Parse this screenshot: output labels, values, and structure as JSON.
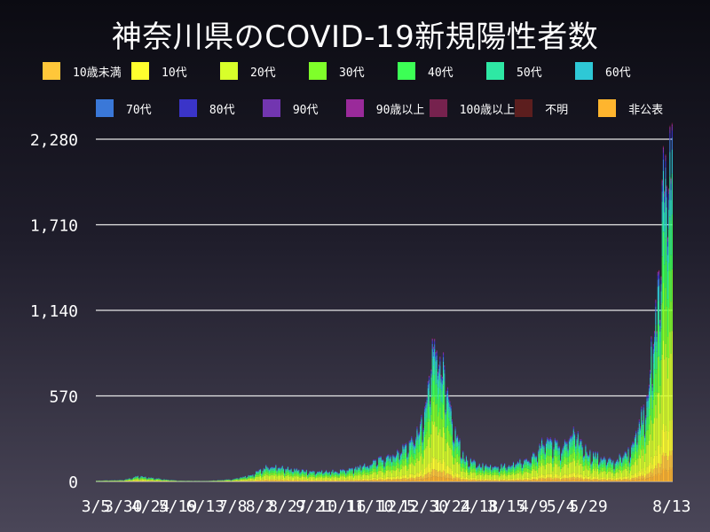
{
  "chart_data": {
    "type": "bar",
    "stacked": true,
    "title": "神奈川県のCOVID-19新規陽性者数",
    "xlabel": "",
    "ylabel": "",
    "ylim": [
      0,
      2280
    ],
    "yticks": [
      0,
      570,
      1140,
      1710,
      2280
    ],
    "ytick_labels": [
      "0",
      "570",
      "1,140",
      "1,710",
      "2,280"
    ],
    "xtick_labels": [
      "3/5",
      "3/30",
      "4/24",
      "5/19",
      "6/13",
      "7/8",
      "8/2",
      "8/27",
      "9/21",
      "10/16",
      "11/10",
      "12/5",
      "12/30",
      "1/24",
      "2/18",
      "3/15",
      "4/9",
      "5/4",
      "5/29",
      "8/13"
    ],
    "grid": true,
    "legend_position": "top",
    "series": [
      {
        "name": "10歳未満",
        "color": "#ffc73a"
      },
      {
        "name": "10代",
        "color": "#ffff2e"
      },
      {
        "name": "20代",
        "color": "#d8ff2a"
      },
      {
        "name": "30代",
        "color": "#7fff2a"
      },
      {
        "name": "40代",
        "color": "#3cff55"
      },
      {
        "name": "50代",
        "color": "#2ee8a4"
      },
      {
        "name": "60代",
        "color": "#2ec8d6"
      },
      {
        "name": "70代",
        "color": "#3a78d8"
      },
      {
        "name": "80代",
        "color": "#3a34c8"
      },
      {
        "name": "90代",
        "color": "#7236b0"
      },
      {
        "name": "90歳以上",
        "color": "#9a2a9a"
      },
      {
        "name": "100歳以上",
        "color": "#76224e"
      },
      {
        "name": "不明",
        "color": "#5c1e1e"
      },
      {
        "name": "非公表",
        "color": "#ffb52e"
      }
    ],
    "daily_totals": [
      {
        "x": "3/5",
        "y": 5
      },
      {
        "x": "3/30",
        "y": 10
      },
      {
        "x": "4/12",
        "y": 35
      },
      {
        "x": "4/24",
        "y": 25
      },
      {
        "x": "5/19",
        "y": 5
      },
      {
        "x": "6/13",
        "y": 3
      },
      {
        "x": "7/8",
        "y": 15
      },
      {
        "x": "7/25",
        "y": 45
      },
      {
        "x": "8/2",
        "y": 75
      },
      {
        "x": "8/10",
        "y": 110
      },
      {
        "x": "8/27",
        "y": 85
      },
      {
        "x": "9/21",
        "y": 65
      },
      {
        "x": "10/16",
        "y": 70
      },
      {
        "x": "11/10",
        "y": 115
      },
      {
        "x": "11/25",
        "y": 170
      },
      {
        "x": "12/5",
        "y": 190
      },
      {
        "x": "12/20",
        "y": 280
      },
      {
        "x": "12/30",
        "y": 420
      },
      {
        "x": "1/8",
        "y": 980
      },
      {
        "x": "1/12",
        "y": 880
      },
      {
        "x": "1/18",
        "y": 640
      },
      {
        "x": "1/24",
        "y": 380
      },
      {
        "x": "2/5",
        "y": 150
      },
      {
        "x": "2/18",
        "y": 110
      },
      {
        "x": "3/15",
        "y": 105
      },
      {
        "x": "4/9",
        "y": 170
      },
      {
        "x": "4/20",
        "y": 290
      },
      {
        "x": "5/4",
        "y": 220
      },
      {
        "x": "5/15",
        "y": 320
      },
      {
        "x": "5/29",
        "y": 190
      },
      {
        "x": "6/20",
        "y": 130
      },
      {
        "x": "7/5",
        "y": 200
      },
      {
        "x": "7/20",
        "y": 520
      },
      {
        "x": "7/30",
        "y": 1100
      },
      {
        "x": "8/5",
        "y": 1900
      },
      {
        "x": "8/10",
        "y": 2200
      },
      {
        "x": "8/13",
        "y": 2280
      }
    ]
  }
}
